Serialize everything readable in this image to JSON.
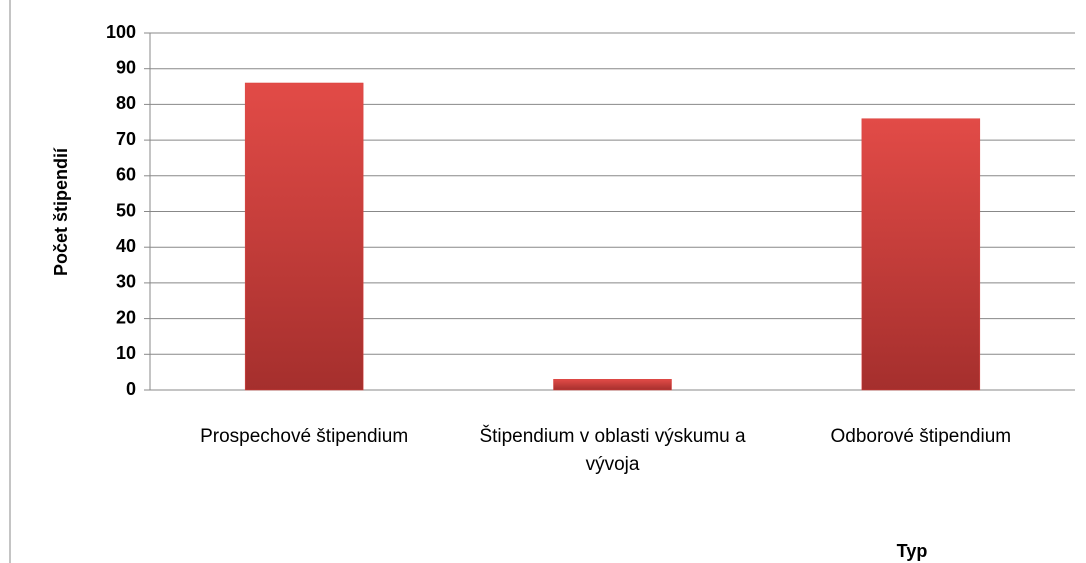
{
  "chart_data": {
    "type": "bar",
    "categories": [
      "Prospechové štipendium",
      "Štipendium v oblasti výskumu a vývoja",
      "Odborové štipendium"
    ],
    "values": [
      86,
      3,
      76
    ],
    "color": "#d9403c",
    "ylim": [
      0,
      100
    ],
    "yticks": [
      0,
      10,
      20,
      30,
      40,
      50,
      60,
      70,
      80,
      90,
      100
    ],
    "grid": true,
    "y_label": "Počet štipendií",
    "x_label": "Typ"
  }
}
